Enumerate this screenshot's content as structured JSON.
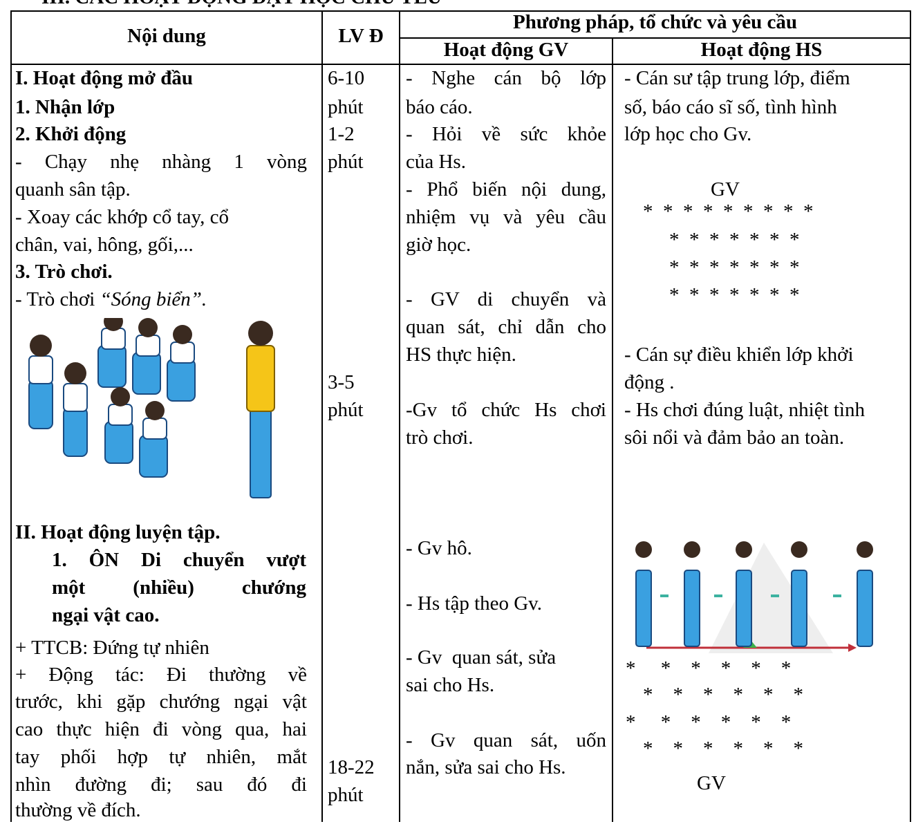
{
  "header": {
    "title": "III. CÁC HOẠT ĐỘNG DẠY HỌC CHỦ YẾU"
  },
  "table": {
    "headers": {
      "content": "Nội dung",
      "duration": "LV Đ",
      "method": "Phương pháp, tổ chức và yêu cầu",
      "teacher": "Hoạt động GV",
      "student": "Hoạt động HS"
    },
    "rows": [
      {
        "content": [
          "I. Hoạt động mở đầu",
          "1. Nhận lớp",
          "2. Khởi động",
          "- Chạy nhẹ nhàng 1 vòng",
          "quanh sân tập.",
          "- Xoay các khớp cổ tay, cổ",
          "chân, vai, hông, gối,...",
          "3. Trò chơi.",
          "- Trò chơi ",
          "“Sóng biển”."
        ],
        "duration": [
          "6-10",
          "phút",
          "1-2",
          "phút",
          "3-5",
          "phút"
        ],
        "teacher": [
          "- Nghe cán bộ lớp",
          "báo cáo.",
          "- Hỏi về sức khỏe",
          "của Hs.",
          "- Phổ biến nội dung,",
          "nhiệm vụ và yêu cầu",
          "giờ học.",
          "- GV di chuyển và",
          "quan sát, chỉ dẫn cho",
          "HS thực hiện.",
          "-Gv tổ chức Hs chơi",
          "trò chơi."
        ],
        "student": [
          "- Cán sư tập trung lớp, điểm",
          "số, báo cáo sĩ số, tình hình",
          "lớp học cho Gv.",
          "GV",
          "*  *  *  *  *  *  *  *  *",
          "*  *  *  *  *  *  *",
          "*  *  *  *  *  *  *",
          "*  *  *  *  *  *  *",
          "- Cán sự điều khiển lớp khởi",
          "động .",
          "- Hs chơi đúng luật, nhiệt tình",
          "sôi nổi và đảm bảo an toàn."
        ]
      },
      {
        "content": [
          "II. Hoạt động luyện tập.",
          "1. ÔN Di chuyển vượt",
          "một (nhiều) chướng",
          "ngại vật cao.",
          "+ TTCB: Đứng tự nhiên",
          "+ Động tác: Đi thường về",
          "trước, khi gặp chướng ngại vật",
          "cao thực hiện đi vòng qua, hai",
          "tay phối hợp tự nhiên, mắt",
          "nhìn đường đi; sau đó đi",
          "thường về đích."
        ],
        "duration": [
          "18-22",
          "phút"
        ],
        "teacher": [
          "- Gv hô.",
          "- Hs tập theo Gv.",
          "- Gv  quan sát, sửa",
          "sai cho Hs.",
          "- Gv quan sát, uốn",
          "nắn, sửa sai cho Hs."
        ],
        "student": [
          "*     *    *    *    *    *",
          "*    *    *    *    *    *",
          "*     *    *    *    *    *",
          "*    *    *    *    *    *",
          "GV"
        ]
      }
    ]
  }
}
